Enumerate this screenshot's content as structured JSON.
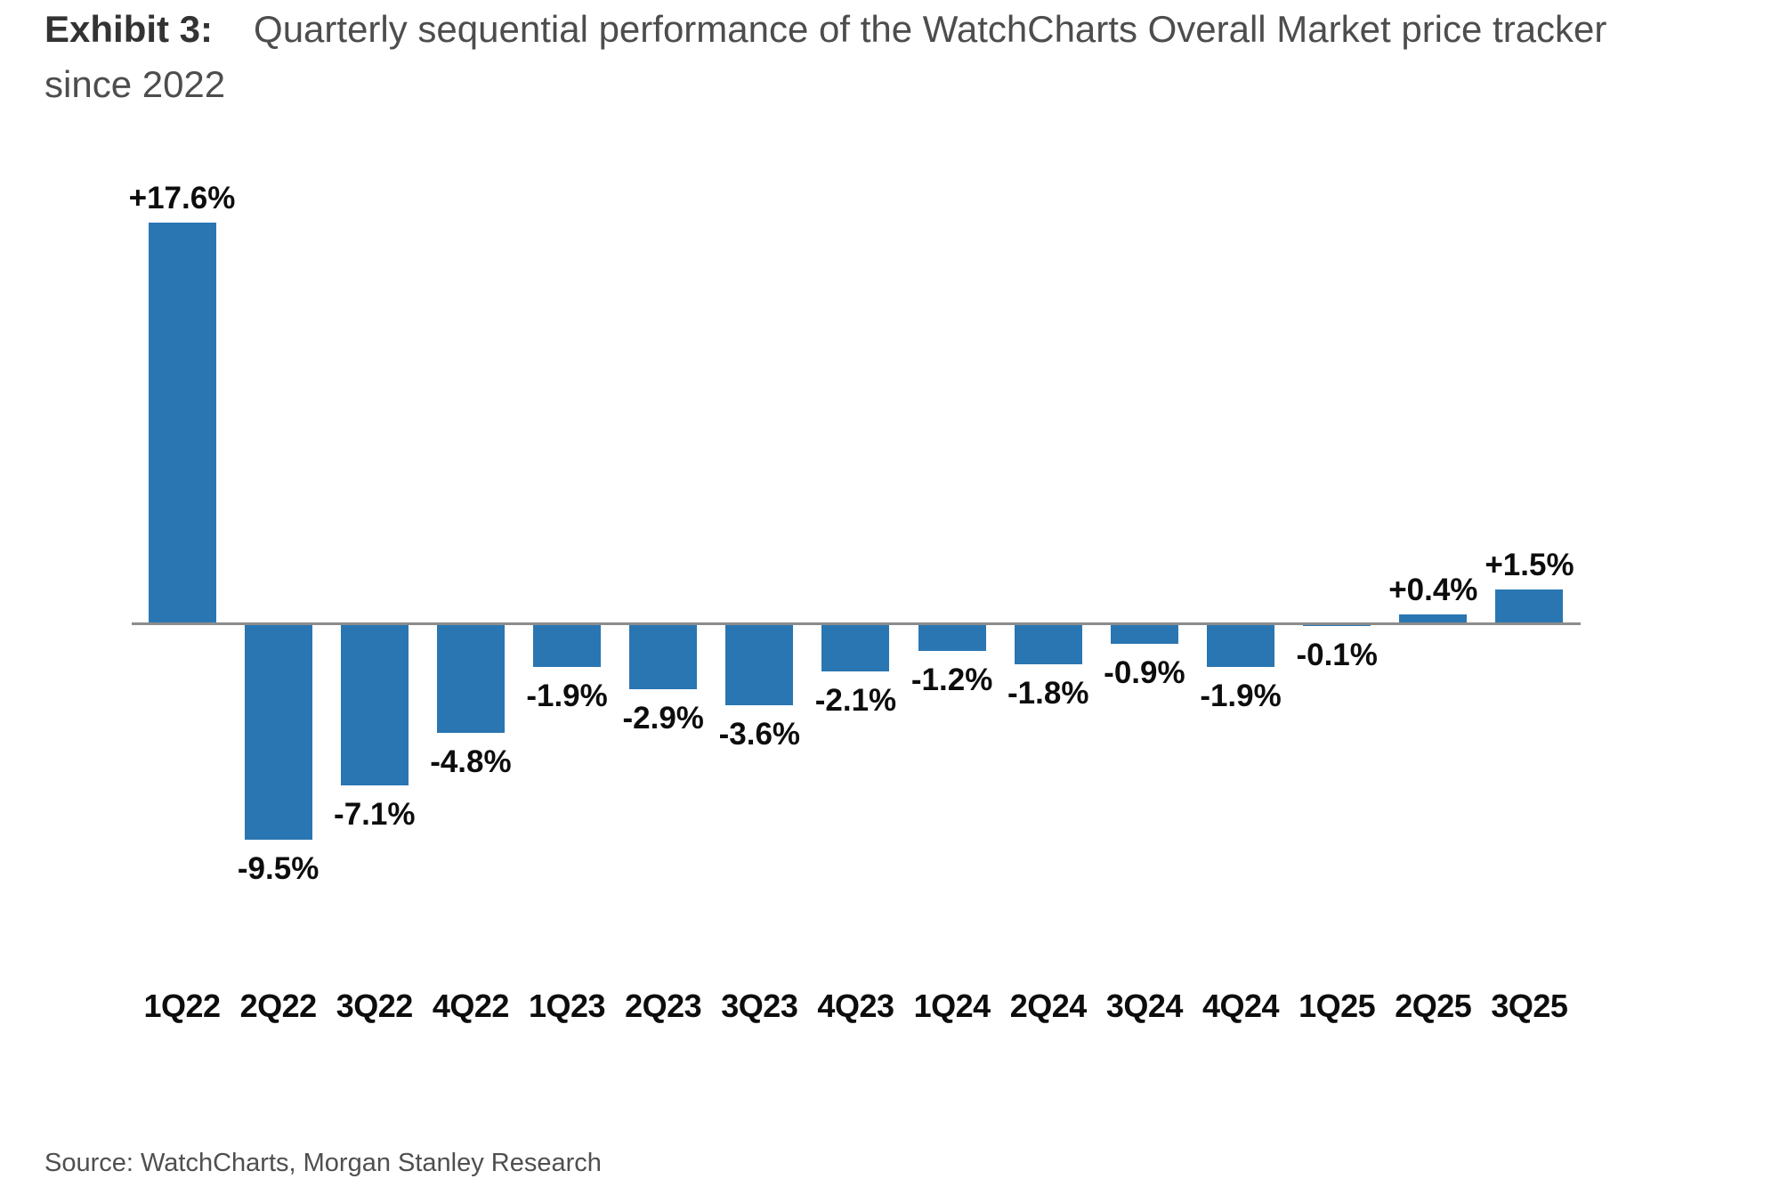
{
  "header": {
    "exhibit_label": "Exhibit 3:",
    "title": "Quarterly sequential performance of the WatchCharts Overall Market price tracker since 2022"
  },
  "footer": {
    "source": "Source: WatchCharts, Morgan Stanley Research"
  },
  "chart_data": {
    "type": "bar",
    "title": "Quarterly sequential performance of the WatchCharts Overall Market price tracker since 2022",
    "xlabel": "",
    "ylabel": "",
    "categories": [
      "1Q22",
      "2Q22",
      "3Q22",
      "4Q22",
      "1Q23",
      "2Q23",
      "3Q23",
      "4Q23",
      "1Q24",
      "2Q24",
      "3Q24",
      "4Q24",
      "1Q25",
      "2Q25",
      "3Q25"
    ],
    "values": [
      17.6,
      -9.5,
      -7.1,
      -4.8,
      -1.9,
      -2.9,
      -3.6,
      -2.1,
      -1.2,
      -1.8,
      -0.9,
      -1.9,
      -0.1,
      0.4,
      1.5
    ],
    "labels": [
      "+17.6%",
      "-9.5%",
      "-7.1%",
      "-4.8%",
      "-1.9%",
      "-2.9%",
      "-3.6%",
      "-2.1%",
      "-1.2%",
      "-1.8%",
      "-0.9%",
      "-1.9%",
      "-0.1%",
      "+0.4%",
      "+1.5%"
    ],
    "unit": "%",
    "ylim": [
      -10,
      18
    ],
    "grid": false,
    "legend_position": "none",
    "bar_color": "#2a76b2",
    "axis_color": "#8c8c8c",
    "label_color": "#0d0d0d"
  }
}
